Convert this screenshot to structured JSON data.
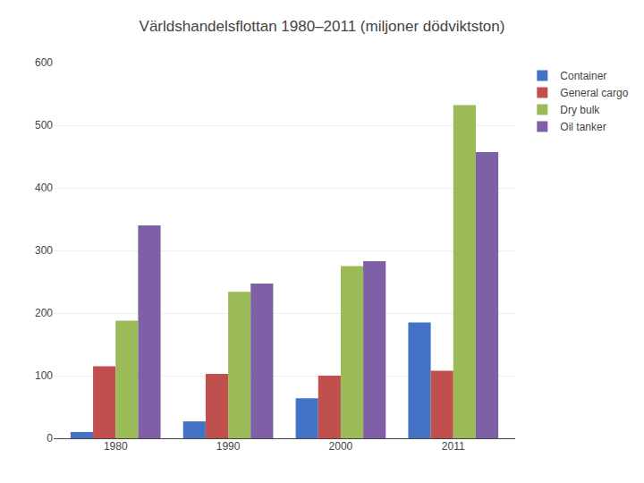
{
  "chart_data": {
    "type": "bar",
    "title": "Världshandelsflottan 1980–2011 (miljoner dödviktston)",
    "categories": [
      "1980",
      "1990",
      "2000",
      "2011"
    ],
    "series": [
      {
        "name": "Container",
        "color": "#4472C4",
        "values": [
          10,
          27,
          64,
          185
        ]
      },
      {
        "name": "General cargo",
        "color": "#C0504D",
        "values": [
          115,
          103,
          100,
          108
        ]
      },
      {
        "name": "Dry bulk",
        "color": "#9BBB59",
        "values": [
          188,
          234,
          275,
          532
        ]
      },
      {
        "name": "Oil tanker",
        "color": "#7F5FA5",
        "values": [
          340,
          247,
          283,
          457
        ]
      }
    ],
    "ylim": [
      0,
      600
    ],
    "yticks": [
      0,
      100,
      200,
      300,
      400,
      500,
      600
    ],
    "grid": true,
    "legend": "right"
  }
}
